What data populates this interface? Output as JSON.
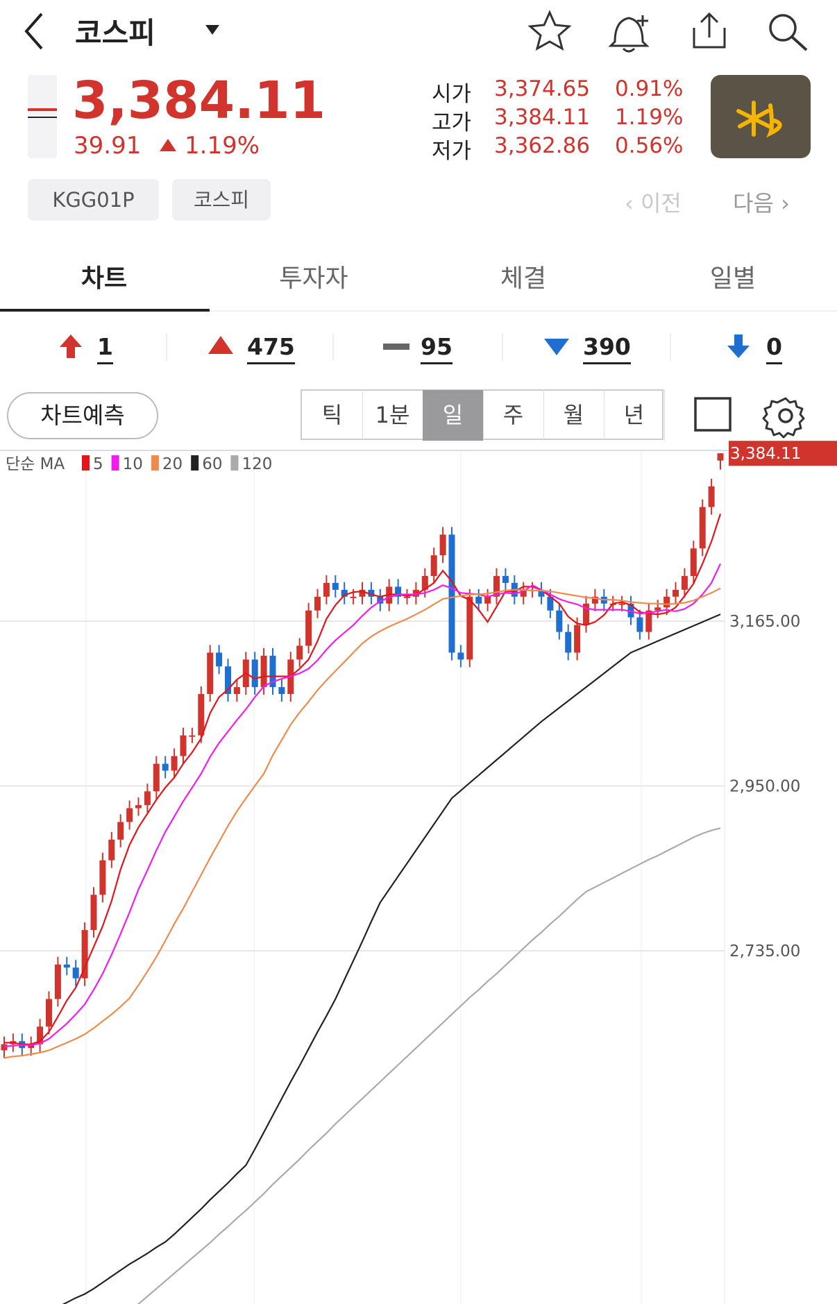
{
  "header": {
    "title": "코스피",
    "price": "3,384.11",
    "change": "39.91",
    "change_pct": "1.19%",
    "quotes": [
      {
        "label": "시가",
        "value": "3,374.65",
        "pct": "0.91%"
      },
      {
        "label": "고가",
        "value": "3,384.11",
        "pct": "1.19%"
      },
      {
        "label": "저가",
        "value": "3,362.86",
        "pct": "0.56%"
      }
    ],
    "tags": [
      "KGG01P",
      "코스피"
    ],
    "prev": "이전",
    "next": "다음"
  },
  "tabs": [
    "차트",
    "투자자",
    "체결",
    "일별"
  ],
  "breadth": [
    "1",
    "475",
    "95",
    "390",
    "0"
  ],
  "toolbar": {
    "predict": "차트예측",
    "periods": [
      "틱",
      "1분",
      "일",
      "주",
      "월",
      "년"
    ]
  },
  "chart_data": {
    "type": "candlestick",
    "legend_title": "단순 MA",
    "up_color": "#d1342c",
    "down_color": "#1f6fd1",
    "ylim": [
      2274,
      3387
    ],
    "yticks": [
      {
        "value": 2735,
        "label": "2,735.00"
      },
      {
        "value": 2950,
        "label": "2,950.00"
      },
      {
        "value": 3165,
        "label": "3,165.00"
      }
    ],
    "grid": true,
    "last_label": "3,384.11",
    "open": [
      2605,
      2613,
      2617,
      2608,
      2613,
      2636,
      2672,
      2717,
      2713,
      2699,
      2762,
      2808,
      2853,
      2880,
      2903,
      2921,
      2925,
      2943,
      2979,
      2970,
      2989,
      3016,
      3016,
      3070,
      3124,
      3106,
      3070,
      3079,
      3115,
      3079,
      3120,
      3079,
      3070,
      3115,
      3133,
      3179,
      3197,
      3215,
      3206,
      3197,
      3197,
      3206,
      3197,
      3188,
      3210,
      3197,
      3197,
      3206,
      3224,
      3251,
      3278,
      3124,
      3115,
      3197,
      3188,
      3197,
      3224,
      3215,
      3197,
      3206,
      3206,
      3197,
      3179,
      3151,
      3124,
      3160,
      3188,
      3197,
      3188,
      3188,
      3188,
      3170,
      3151,
      3179,
      3183,
      3197,
      3206,
      3224,
      3260,
      3314,
      3374.65
    ],
    "high": [
      2623,
      2627,
      2627,
      2623,
      2646,
      2682,
      2727,
      2727,
      2723,
      2772,
      2818,
      2863,
      2890,
      2913,
      2931,
      2935,
      2953,
      2989,
      2989,
      2999,
      3026,
      3026,
      3080,
      3134,
      3134,
      3116,
      3089,
      3125,
      3125,
      3130,
      3130,
      3089,
      3125,
      3143,
      3189,
      3207,
      3225,
      3225,
      3216,
      3207,
      3216,
      3216,
      3207,
      3220,
      3220,
      3207,
      3216,
      3234,
      3261,
      3288,
      3288,
      3134,
      3207,
      3207,
      3207,
      3234,
      3234,
      3225,
      3216,
      3216,
      3216,
      3207,
      3189,
      3161,
      3170,
      3198,
      3207,
      3207,
      3198,
      3198,
      3198,
      3180,
      3189,
      3193,
      3207,
      3216,
      3234,
      3270,
      3324,
      3351,
      3384.11
    ],
    "low": [
      2595,
      2603,
      2598,
      2598,
      2603,
      2626,
      2662,
      2703,
      2689,
      2689,
      2752,
      2798,
      2843,
      2870,
      2893,
      2911,
      2915,
      2933,
      2960,
      2960,
      2979,
      3006,
      3006,
      3060,
      3096,
      3060,
      3060,
      3069,
      3069,
      3069,
      3069,
      3060,
      3060,
      3105,
      3123,
      3169,
      3187,
      3196,
      3187,
      3187,
      3187,
      3187,
      3178,
      3178,
      3187,
      3187,
      3187,
      3196,
      3214,
      3241,
      3114,
      3105,
      3105,
      3178,
      3178,
      3187,
      3205,
      3187,
      3187,
      3196,
      3187,
      3169,
      3141,
      3114,
      3114,
      3150,
      3178,
      3178,
      3178,
      3178,
      3160,
      3141,
      3141,
      3169,
      3173,
      3187,
      3196,
      3214,
      3250,
      3304,
      3362.86
    ],
    "close": [
      2613,
      2617,
      2608,
      2613,
      2636,
      2672,
      2717,
      2713,
      2699,
      2762,
      2808,
      2853,
      2880,
      2903,
      2921,
      2925,
      2943,
      2979,
      2970,
      2989,
      3016,
      3016,
      3070,
      3124,
      3106,
      3070,
      3079,
      3115,
      3079,
      3120,
      3079,
      3070,
      3115,
      3133,
      3179,
      3197,
      3215,
      3206,
      3197,
      3197,
      3206,
      3197,
      3188,
      3210,
      3197,
      3197,
      3206,
      3224,
      3251,
      3278,
      3124,
      3115,
      3197,
      3188,
      3197,
      3224,
      3215,
      3197,
      3206,
      3206,
      3197,
      3179,
      3151,
      3124,
      3160,
      3188,
      3197,
      3188,
      3188,
      3188,
      3170,
      3151,
      3179,
      3183,
      3197,
      3206,
      3224,
      3260,
      3314,
      3341,
      3384.11
    ],
    "series": [
      {
        "name": "5",
        "color": "#e3151a",
        "values": [
          2615,
          2615,
          2613,
          2613,
          2617,
          2629,
          2649,
          2670,
          2687,
          2713,
          2740,
          2767,
          2800,
          2841,
          2873,
          2896,
          2914,
          2932,
          2948,
          2961,
          2979,
          2994,
          3012,
          3045,
          3066,
          3076,
          3089,
          3097,
          3090,
          3093,
          3093,
          3093,
          3093,
          3103,
          3115,
          3139,
          3168,
          3186,
          3199,
          3203,
          3204,
          3200,
          3197,
          3200,
          3200,
          3198,
          3200,
          3207,
          3215,
          3231,
          3217,
          3198,
          3193,
          3180,
          3164,
          3184,
          3204,
          3204,
          3210,
          3210,
          3206,
          3197,
          3188,
          3171,
          3162,
          3160,
          3164,
          3173,
          3188,
          3190,
          3186,
          3177,
          3175,
          3174,
          3176,
          3183,
          3198,
          3214,
          3240,
          3269,
          3305
        ]
      },
      {
        "name": "10",
        "color": "#f01cf0",
        "values": [
          2610,
          2611,
          2612,
          2612,
          2614,
          2620,
          2630,
          2640,
          2652,
          2665,
          2684,
          2705,
          2730,
          2757,
          2785,
          2815,
          2840,
          2866,
          2890,
          2910,
          2930,
          2948,
          2966,
          2988,
          3006,
          3021,
          3036,
          3050,
          3066,
          3080,
          3086,
          3090,
          3093,
          3097,
          3103,
          3114,
          3128,
          3140,
          3150,
          3160,
          3172,
          3183,
          3191,
          3196,
          3200,
          3200,
          3200,
          3202,
          3206,
          3212,
          3208,
          3202,
          3201,
          3200,
          3197,
          3200,
          3202,
          3201,
          3204,
          3212,
          3206,
          3200,
          3194,
          3190,
          3187,
          3182,
          3180,
          3180,
          3180,
          3180,
          3178,
          3175,
          3176,
          3178,
          3180,
          3178,
          3181,
          3188,
          3200,
          3215,
          3240
        ]
      },
      {
        "name": "20",
        "color": "#f08a4b",
        "values": [
          2595,
          2597,
          2598,
          2600,
          2602,
          2605,
          2610,
          2615,
          2620,
          2626,
          2634,
          2643,
          2652,
          2662,
          2673,
          2690,
          2708,
          2727,
          2748,
          2770,
          2790,
          2812,
          2834,
          2856,
          2877,
          2898,
          2917,
          2934,
          2950,
          2966,
          2990,
          3010,
          3030,
          3046,
          3060,
          3075,
          3088,
          3100,
          3112,
          3124,
          3136,
          3145,
          3152,
          3158,
          3163,
          3168,
          3174,
          3180,
          3187,
          3194,
          3196,
          3198,
          3200,
          3200,
          3201,
          3203,
          3205,
          3206,
          3206,
          3205,
          3205,
          3204,
          3202,
          3200,
          3198,
          3196,
          3195,
          3193,
          3193,
          3192,
          3190,
          3189,
          3188,
          3188,
          3187,
          3188,
          3189,
          3192,
          3197,
          3202,
          3208
        ]
      },
      {
        "name": "60",
        "color": "#222222",
        "values": [
          2230,
          2236,
          2242,
          2249,
          2256,
          2263,
          2270,
          2276,
          2282,
          2287,
          2294,
          2302,
          2310,
          2318,
          2326,
          2333,
          2340,
          2348,
          2355,
          2365,
          2376,
          2387,
          2398,
          2410,
          2421,
          2432,
          2444,
          2455,
          2476,
          2498,
          2520,
          2542,
          2564,
          2585,
          2607,
          2629,
          2650,
          2672,
          2697,
          2722,
          2747,
          2773,
          2798,
          2815,
          2832,
          2849,
          2866,
          2883,
          2900,
          2917,
          2934,
          2944,
          2954,
          2964,
          2974,
          2984,
          2994,
          3004,
          3014,
          3024,
          3034,
          3043,
          3052,
          3061,
          3070,
          3079,
          3088,
          3097,
          3106,
          3115,
          3124,
          3129,
          3134,
          3139,
          3144,
          3149,
          3154,
          3159,
          3164,
          3169,
          3174
        ]
      },
      {
        "name": "120",
        "color": "#aaaaaa",
        "values": [
          2200,
          2205,
          2210,
          2215,
          2220,
          2225,
          2230,
          2235,
          2240,
          2245,
          2250,
          2254,
          2258,
          2262,
          2266,
          2274,
          2284,
          2294,
          2304,
          2314,
          2324,
          2334,
          2344,
          2354,
          2365,
          2375,
          2386,
          2396,
          2407,
          2418,
          2430,
          2441,
          2452,
          2463,
          2475,
          2486,
          2497,
          2509,
          2520,
          2531,
          2542,
          2553,
          2564,
          2575,
          2586,
          2597,
          2608,
          2619,
          2630,
          2641,
          2652,
          2663,
          2674,
          2684,
          2695,
          2705,
          2716,
          2727,
          2738,
          2749,
          2759,
          2770,
          2780,
          2791,
          2802,
          2812,
          2818,
          2824,
          2830,
          2836,
          2842,
          2848,
          2854,
          2859,
          2865,
          2871,
          2877,
          2883,
          2888,
          2892,
          2895
        ]
      }
    ]
  }
}
